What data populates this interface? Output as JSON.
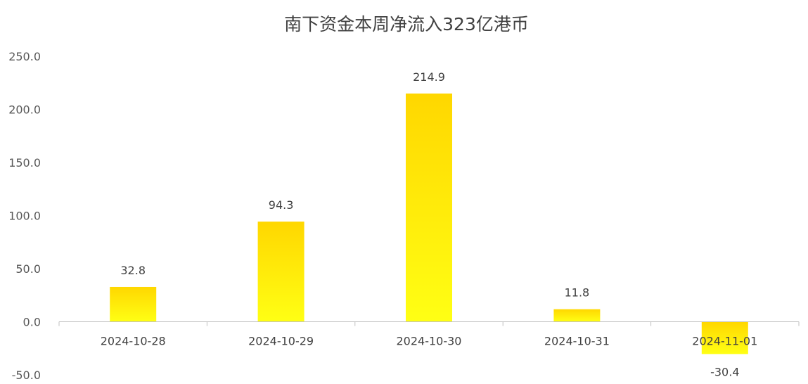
{
  "chart_data": {
    "type": "bar",
    "title": "南下资金本周净流入323亿港币",
    "xlabel": "",
    "ylabel": "",
    "categories": [
      "2024-10-28",
      "2024-10-29",
      "2024-10-30",
      "2024-10-31",
      "2024-11-01"
    ],
    "values": [
      32.8,
      94.3,
      214.9,
      11.8,
      -30.4
    ],
    "data_labels": [
      "32.8",
      "94.3",
      "214.9",
      "11.8",
      "-30.4"
    ],
    "ylim": [
      -50,
      250
    ],
    "yticks": [
      250,
      200,
      150,
      100,
      50,
      0,
      -50
    ],
    "ytick_labels": [
      "250.0",
      "200.0",
      "150.0",
      "100.0",
      "50.0",
      "0.0",
      "-50.0"
    ],
    "grid": false,
    "legend": "none",
    "colors": {
      "bar_top": "#FFD700",
      "bar_bottom": "#FFFF14",
      "axis": "#BFBFBF"
    }
  }
}
